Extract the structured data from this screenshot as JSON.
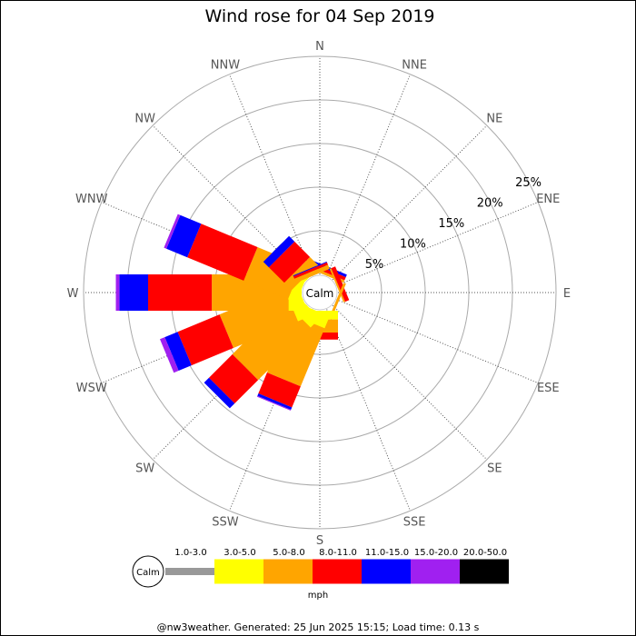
{
  "chart_data": {
    "type": "wind-rose",
    "title": "Wind rose for 04 Sep 2019",
    "directions": [
      "N",
      "NNE",
      "NE",
      "ENE",
      "E",
      "ESE",
      "SE",
      "SSE",
      "S",
      "SSW",
      "SW",
      "WSW",
      "W",
      "WNW",
      "NW",
      "NNW"
    ],
    "radial_ticks": [
      "5%",
      "10%",
      "15%",
      "20%",
      "25%"
    ],
    "radial_max_percent": 25,
    "calm_label": "Calm",
    "unit": "mph",
    "speed_bins": [
      {
        "label": "1.0-3.0",
        "color": "#999999"
      },
      {
        "label": "3.0-5.0",
        "color": "#ffff00"
      },
      {
        "label": "5.0-8.0",
        "color": "#ffa500"
      },
      {
        "label": "8.0-11.0",
        "color": "#ff0000"
      },
      {
        "label": "11.0-15.0",
        "color": "#0000ff"
      },
      {
        "label": "15.0-20.0",
        "color": "#a020f0"
      },
      {
        "label": "20.0-50.0",
        "color": "#000000"
      }
    ],
    "series": [
      {
        "direction": "N",
        "values": [
          0,
          0,
          0,
          0,
          0,
          0,
          0
        ]
      },
      {
        "direction": "NNE",
        "values": [
          0,
          0,
          0.3,
          0.4,
          0.3,
          0,
          0
        ]
      },
      {
        "direction": "NE",
        "values": [
          0,
          0,
          0,
          0,
          0,
          0,
          0
        ]
      },
      {
        "direction": "ENE",
        "values": [
          0,
          0,
          0.2,
          0.5,
          0,
          0,
          0
        ]
      },
      {
        "direction": "E",
        "values": [
          0,
          0,
          0,
          0,
          0,
          0,
          0
        ]
      },
      {
        "direction": "ESE",
        "values": [
          0,
          0,
          0.3,
          0,
          0,
          0,
          0
        ]
      },
      {
        "direction": "SE",
        "values": [
          0,
          0,
          0,
          0,
          0,
          0,
          0
        ]
      },
      {
        "direction": "SSE",
        "values": [
          0,
          0,
          0,
          0,
          0,
          0,
          0
        ]
      },
      {
        "direction": "S",
        "values": [
          0,
          1.0,
          1.5,
          0.8,
          0,
          0,
          0
        ]
      },
      {
        "direction": "SSW",
        "values": [
          0,
          1.5,
          7.2,
          2.6,
          0.3,
          0.1,
          0
        ]
      },
      {
        "direction": "SW",
        "values": [
          0,
          1.5,
          8.5,
          3.8,
          0.8,
          0,
          0
        ]
      },
      {
        "direction": "WSW",
        "values": [
          0,
          1.5,
          8.0,
          5.2,
          1.6,
          0.6,
          0
        ]
      },
      {
        "direction": "W",
        "values": [
          0,
          1.5,
          8.8,
          7.3,
          3.3,
          0.4,
          0
        ]
      },
      {
        "direction": "WNW",
        "values": [
          0,
          1.0,
          5.5,
          7.0,
          2.6,
          0.3,
          0
        ]
      },
      {
        "direction": "NW",
        "values": [
          0,
          0.4,
          1.2,
          2.5,
          0.9,
          0,
          0
        ]
      },
      {
        "direction": "NNW",
        "values": [
          0,
          0,
          0.5,
          0.3,
          0.1,
          0,
          0
        ]
      }
    ]
  },
  "footer": "@nw3weather. Generated: 25 Jun 2025 15:15; Load time: 0.13 s"
}
